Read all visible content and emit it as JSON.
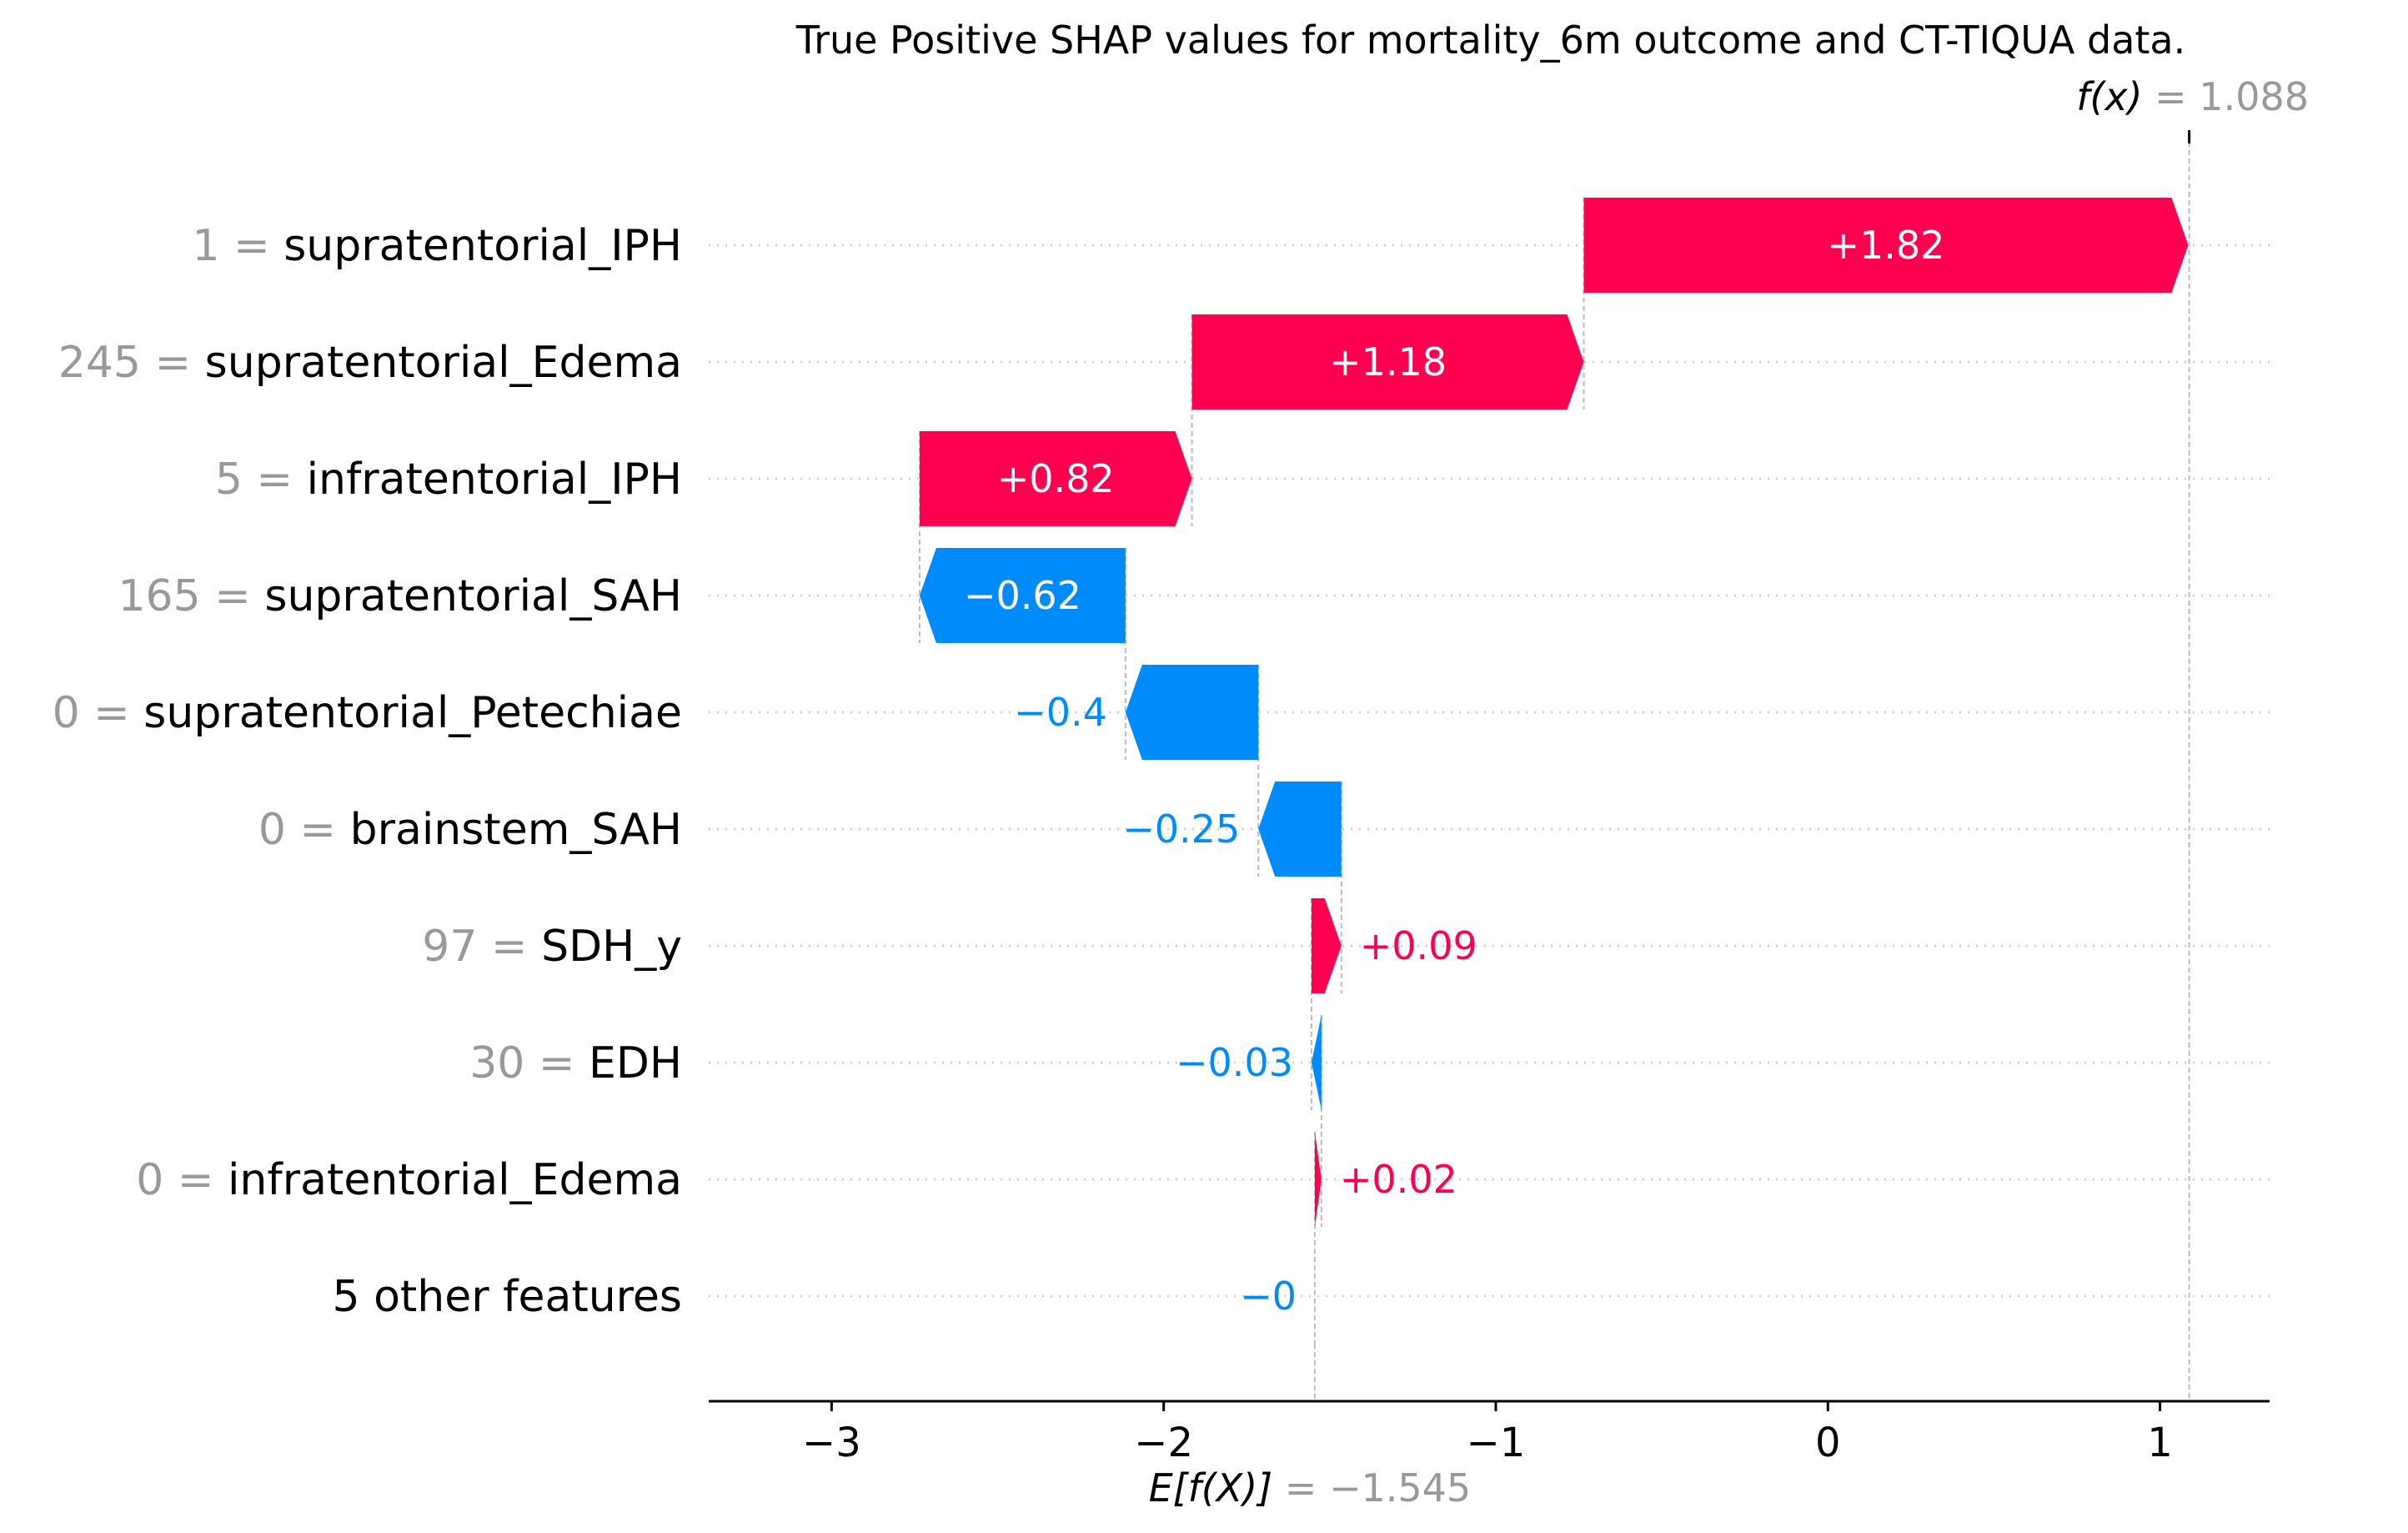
{
  "chart_data": {
    "type": "waterfall",
    "title": "True Positive SHAP values for mortality_6m outcome and CT-TIQUA data.",
    "fx_label": "f(x)",
    "fx_value": "1.088",
    "fx": 1.088,
    "base_label": "E[f(X)]",
    "base_value": "−1.545",
    "base": -1.545,
    "xlim": [
      -3.37,
      1.33
    ],
    "xticks": [
      -3,
      -2,
      -1,
      0,
      1
    ],
    "xtick_labels": [
      "−3",
      "−2",
      "−1",
      "0",
      "1"
    ],
    "colors": {
      "positive": "#ff0051",
      "negative": "#008bfb",
      "feature_value": "#999999",
      "text": "#000000"
    },
    "features": [
      {
        "value": "1",
        "name": "supratentorial_IPH",
        "shap": 1.82,
        "label": "+1.82"
      },
      {
        "value": "245",
        "name": "supratentorial_Edema",
        "shap": 1.18,
        "label": "+1.18"
      },
      {
        "value": "5",
        "name": "infratentorial_IPH",
        "shap": 0.82,
        "label": "+0.82"
      },
      {
        "value": "165",
        "name": "supratentorial_SAH",
        "shap": -0.62,
        "label": "−0.62"
      },
      {
        "value": "0",
        "name": "supratentorial_Petechiae",
        "shap": -0.4,
        "label": "−0.4"
      },
      {
        "value": "0",
        "name": "brainstem_SAH",
        "shap": -0.25,
        "label": "−0.25"
      },
      {
        "value": "97",
        "name": "SDH_y",
        "shap": 0.09,
        "label": "+0.09"
      },
      {
        "value": "30",
        "name": "EDH",
        "shap": -0.03,
        "label": "−0.03"
      },
      {
        "value": "0",
        "name": "infratentorial_Edema",
        "shap": 0.02,
        "label": "+0.02"
      },
      {
        "value": "",
        "name": "5 other features",
        "shap": -0.0,
        "label": "−0"
      }
    ]
  }
}
